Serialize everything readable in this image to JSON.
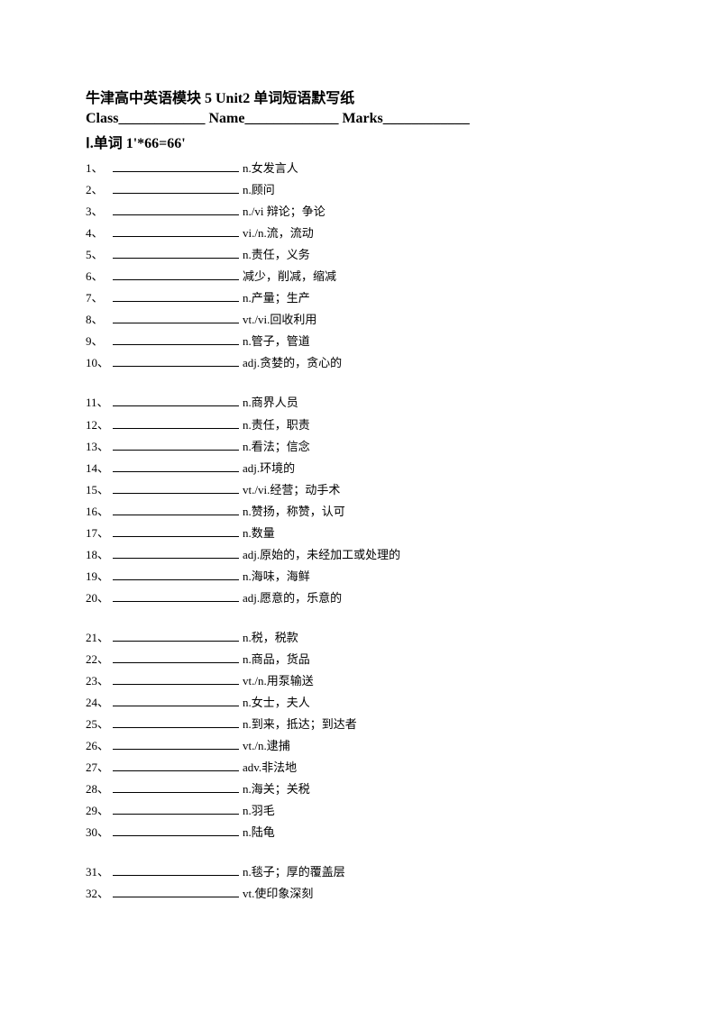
{
  "title": "牛津高中英语模块 5 Unit2 单词短语默写纸",
  "header": {
    "class_label": "Class",
    "class_blank": "____________",
    "name_label": "Name",
    "name_blank": "_____________",
    "marks_label": "Marks",
    "marks_blank": "____________"
  },
  "section": "Ⅰ.单词   1'*66=66'",
  "items": [
    {
      "num": "1、",
      "def": "n.女发言人"
    },
    {
      "num": "2、",
      "def": "n.顾问"
    },
    {
      "num": "3、",
      "def": "n./vi 辩论；争论"
    },
    {
      "num": "4、",
      "def": "vi./n.流，流动"
    },
    {
      "num": "5、",
      "def": "n.责任，义务"
    },
    {
      "num": "6、",
      "def": "减少，削减，缩减"
    },
    {
      "num": "7、",
      "def": "n.产量；生产"
    },
    {
      "num": "8、",
      "def": "vt./vi.回收利用"
    },
    {
      "num": "9、",
      "def": "n.管子，管道"
    },
    {
      "num": "10、",
      "def": "adj.贪婪的，贪心的"
    },
    {
      "num": "11、",
      "def": "n.商界人员"
    },
    {
      "num": "12、",
      "def": "n.责任，职责"
    },
    {
      "num": "13、",
      "def": "n.看法；信念"
    },
    {
      "num": "14、",
      "def": "adj.环境的"
    },
    {
      "num": "15、",
      "def": "vt./vi.经营；动手术"
    },
    {
      "num": "16、",
      "def": "n.赞扬，称赞，认可"
    },
    {
      "num": "17、",
      "def": "n.数量"
    },
    {
      "num": "18、",
      "def": "adj.原始的，未经加工或处理的"
    },
    {
      "num": "19、",
      "def": "n.海味，海鲜"
    },
    {
      "num": "20、",
      "def": "adj.愿意的，乐意的"
    },
    {
      "num": "21、",
      "def": "n.税，税款"
    },
    {
      "num": "22、",
      "def": "n.商品，货品"
    },
    {
      "num": "23、",
      "def": "vt./n.用泵输送"
    },
    {
      "num": "24、",
      "def": "n.女士，夫人"
    },
    {
      "num": "25、",
      "def": "n.到来，抵达；到达者"
    },
    {
      "num": "26、",
      "def": "vt./n.逮捕"
    },
    {
      "num": "27、",
      "def": "adv.非法地"
    },
    {
      "num": "28、",
      "def": "n.海关；关税"
    },
    {
      "num": "29、",
      "def": "n.羽毛"
    },
    {
      "num": "30、",
      "def": "n.陆龟"
    },
    {
      "num": "31、",
      "def": "n.毯子；厚的覆盖层"
    },
    {
      "num": "32、",
      "def": "vt.使印象深刻"
    }
  ],
  "group_breaks": [
    10,
    20,
    30
  ]
}
